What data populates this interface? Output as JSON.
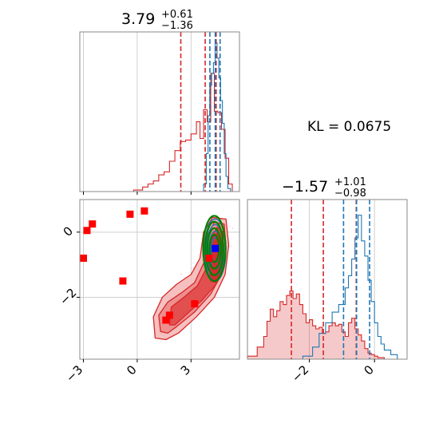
{
  "chart_data": {
    "type": "corner",
    "colors": {
      "posterior": "#d62728",
      "reference": "#1f77b4",
      "contour_alt": "#008000",
      "truth_point": "#0000ff",
      "samples": "#ff0000"
    },
    "parameters": [
      {
        "title": {
          "main": "3.79",
          "plus": "+0.61",
          "minus": "−1.36"
        },
        "range": [
          -3.2,
          5.7
        ],
        "ticks": [
          -3,
          0,
          3
        ],
        "tick_labels": [
          "−3",
          "0",
          "3"
        ],
        "quantiles_red": [
          2.43,
          3.79,
          4.4
        ],
        "quantiles_blue": [
          4.05,
          4.35,
          4.62
        ]
      },
      {
        "title": {
          "main": "−1.57",
          "plus": "+1.01",
          "minus": "−0.98"
        },
        "range": [
          -3.9,
          1.0
        ],
        "ticks": [
          -2,
          0
        ],
        "tick_labels": [
          "−2",
          "0"
        ],
        "quantiles_red": [
          -2.55,
          -1.57,
          -0.56
        ],
        "quantiles_blue": [
          -0.95,
          -0.55,
          -0.15
        ]
      }
    ],
    "kl_label": "KL = 0.0675",
    "hist_red": {
      "bins_x": [
        -3.2,
        -0.2,
        0.3,
        0.6,
        0.9,
        1.2,
        1.5,
        1.8,
        2.1,
        2.4,
        2.7,
        3.0,
        3.3,
        3.5,
        3.7,
        3.9,
        4.1,
        4.3,
        4.5,
        4.7,
        4.9,
        5.1,
        5.3,
        5.7
      ],
      "counts": [
        0,
        0.01,
        0.03,
        0.05,
        0.07,
        0.11,
        0.13,
        0.2,
        0.27,
        0.33,
        0.34,
        0.38,
        0.46,
        0.35,
        0.54,
        0.46,
        0.78,
        0.53,
        0.52,
        0.41,
        0.22,
        0.05,
        0
      ]
    },
    "hist_blue": {
      "bins_x": [
        3.5,
        3.7,
        3.85,
        3.95,
        4.05,
        4.15,
        4.25,
        4.35,
        4.45,
        4.55,
        4.65,
        4.75,
        4.85,
        4.95,
        5.05,
        5.2
      ],
      "counts": [
        0,
        0.05,
        0.25,
        0.5,
        0.7,
        0.78,
        0.85,
        0.98,
        0.88,
        0.75,
        0.6,
        0.45,
        0.25,
        0.1,
        0.02
      ]
    },
    "hist2_red": {
      "bins_x": [
        -3.9,
        -3.6,
        -3.4,
        -3.3,
        -3.2,
        -3.1,
        -3.0,
        -2.9,
        -2.8,
        -2.7,
        -2.6,
        -2.5,
        -2.4,
        -2.3,
        -2.2,
        -2.1,
        -2.0,
        -1.9,
        -1.8,
        -1.7,
        -1.6,
        -1.5,
        -1.4,
        -1.3,
        -1.2,
        -1.1,
        -1.0,
        -0.9,
        -0.8,
        -0.7,
        -0.6,
        -0.5,
        -0.4,
        -0.3,
        -0.2,
        -0.1,
        0.0,
        0.1,
        0.2,
        0.3,
        1.0
      ],
      "counts": [
        0.02,
        0.08,
        0.15,
        0.25,
        0.33,
        0.28,
        0.32,
        0.38,
        0.36,
        0.42,
        0.45,
        0.4,
        0.43,
        0.36,
        0.3,
        0.24,
        0.26,
        0.22,
        0.2,
        0.21,
        0.17,
        0.18,
        0.22,
        0.24,
        0.22,
        0.23,
        0.18,
        0.15,
        0.24,
        0.27,
        0.2,
        0.16,
        0.12,
        0.07,
        0.04,
        0.03,
        0.02,
        0.01,
        0.01,
        0
      ]
    },
    "hist2_blue": {
      "bins_x": [
        -2.2,
        -1.9,
        -1.7,
        -1.5,
        -1.3,
        -1.1,
        -0.9,
        -0.8,
        -0.7,
        -0.6,
        -0.5,
        -0.4,
        -0.3,
        -0.2,
        -0.1,
        0.0,
        0.1,
        0.2,
        0.3,
        0.5,
        0.7,
        1.0
      ],
      "counts": [
        0.02,
        0.08,
        0.17,
        0.24,
        0.31,
        0.36,
        0.47,
        0.55,
        0.66,
        0.8,
        0.95,
        0.78,
        0.68,
        0.52,
        0.38,
        0.24,
        0.15,
        0.1,
        0.06,
        0.03,
        0
      ]
    },
    "scatter_squares": [
      {
        "x": -3.0,
        "y": -0.8
      },
      {
        "x": -2.8,
        "y": 0.05
      },
      {
        "x": -2.5,
        "y": 0.25
      },
      {
        "x": -0.8,
        "y": -1.5
      },
      {
        "x": -0.4,
        "y": 0.55
      },
      {
        "x": 0.4,
        "y": 0.65
      },
      {
        "x": 1.6,
        "y": -2.7
      },
      {
        "x": 1.8,
        "y": -2.55
      },
      {
        "x": 3.2,
        "y": -2.2
      },
      {
        "x": 4.0,
        "y": -0.8
      }
    ],
    "truth_point": {
      "x": 4.35,
      "y": -0.5
    },
    "contours_red": [
      [
        [
          1.0,
          -3.25
        ],
        [
          0.9,
          -2.6
        ],
        [
          1.4,
          -2.0
        ],
        [
          2.2,
          -1.6
        ],
        [
          3.0,
          -1.3
        ],
        [
          3.5,
          -0.8
        ],
        [
          3.7,
          0.0
        ],
        [
          4.2,
          0.45
        ],
        [
          4.95,
          0.4
        ],
        [
          5.1,
          -0.4
        ],
        [
          4.9,
          -1.3
        ],
        [
          4.3,
          -2.0
        ],
        [
          3.3,
          -2.6
        ],
        [
          2.3,
          -3.1
        ],
        [
          1.6,
          -3.3
        ]
      ],
      [
        [
          1.3,
          -3.05
        ],
        [
          1.2,
          -2.55
        ],
        [
          1.7,
          -2.15
        ],
        [
          2.5,
          -1.85
        ],
        [
          3.2,
          -1.55
        ],
        [
          3.75,
          -0.9
        ],
        [
          3.9,
          -0.1
        ],
        [
          4.3,
          0.3
        ],
        [
          4.85,
          0.25
        ],
        [
          4.95,
          -0.5
        ],
        [
          4.7,
          -1.3
        ],
        [
          4.1,
          -1.9
        ],
        [
          3.2,
          -2.45
        ],
        [
          2.2,
          -2.9
        ],
        [
          1.7,
          -3.1
        ]
      ],
      [
        [
          1.8,
          -2.85
        ],
        [
          1.9,
          -2.3
        ],
        [
          2.6,
          -2.0
        ],
        [
          3.35,
          -1.65
        ],
        [
          3.95,
          -1.0
        ],
        [
          4.1,
          -0.2
        ],
        [
          4.45,
          0.15
        ],
        [
          4.8,
          0.0
        ],
        [
          4.8,
          -0.8
        ],
        [
          4.4,
          -1.6
        ],
        [
          3.6,
          -2.1
        ],
        [
          2.6,
          -2.6
        ],
        [
          2.1,
          -2.85
        ]
      ],
      [
        [
          4.1,
          -1.5
        ],
        [
          4.0,
          -0.9
        ],
        [
          4.1,
          -0.2
        ],
        [
          4.5,
          0.0
        ],
        [
          4.75,
          -0.3
        ],
        [
          4.75,
          -1.1
        ],
        [
          4.4,
          -1.55
        ]
      ]
    ],
    "contours_blue": [
      {
        "cx": 4.35,
        "cy": -0.55,
        "rx": 0.6,
        "ry": 0.95
      },
      {
        "cx": 4.35,
        "cy": -0.55,
        "rx": 0.48,
        "ry": 0.78
      },
      {
        "cx": 4.35,
        "cy": -0.55,
        "rx": 0.35,
        "ry": 0.58
      },
      {
        "cx": 4.35,
        "cy": -0.55,
        "rx": 0.22,
        "ry": 0.38
      }
    ],
    "contours_green": [
      {
        "cx": 4.3,
        "cy": -0.5,
        "rx": 0.62,
        "ry": 1.0
      },
      {
        "cx": 4.3,
        "cy": -0.5,
        "rx": 0.5,
        "ry": 0.82
      },
      {
        "cx": 4.3,
        "cy": -0.5,
        "rx": 0.38,
        "ry": 0.62
      },
      {
        "cx": 4.3,
        "cy": -0.5,
        "rx": 0.26,
        "ry": 0.42
      }
    ]
  }
}
